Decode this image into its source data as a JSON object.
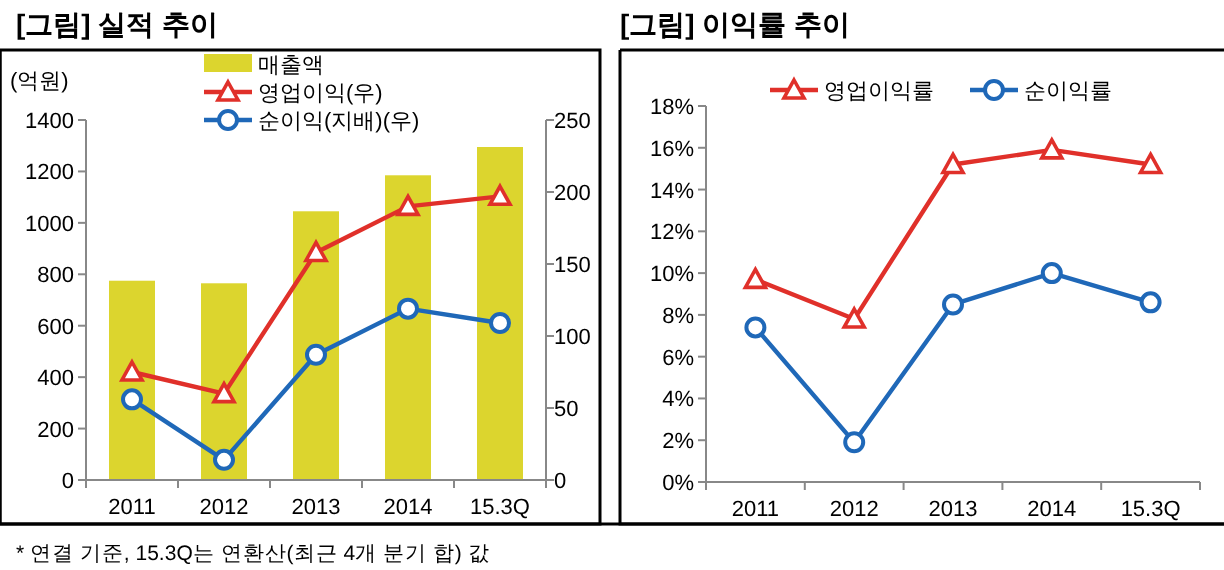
{
  "chart_data": [
    {
      "type": "bar",
      "title": "[그림] 실적 추이",
      "ylabel": "(억원)",
      "categories": [
        "2011",
        "2012",
        "2013",
        "2014",
        "15.3Q"
      ],
      "series": [
        {
          "name": "매출액",
          "color": "#dcd52e",
          "values": [
            775,
            765,
            1045,
            1185,
            1295
          ]
        },
        {
          "name": "영업이익(우)",
          "type": "line",
          "axis": "y2",
          "marker": "triangle",
          "color": "#e0302a",
          "values": [
            75,
            60,
            158,
            190,
            197
          ]
        },
        {
          "name": "순이익(지배)(우)",
          "type": "line",
          "axis": "y2",
          "marker": "circle",
          "color": "#1f68b8",
          "values": [
            56,
            14,
            87,
            119,
            109
          ]
        }
      ],
      "ylim": [
        0,
        1400
      ],
      "yticks": [
        0,
        200,
        400,
        600,
        800,
        1000,
        1200,
        1400
      ],
      "y2lim": [
        0,
        250
      ],
      "y2ticks": [
        0,
        50,
        100,
        150,
        200,
        250
      ],
      "legend": "top",
      "grid": false,
      "annotations": [
        "* 연결 기준, 15.3Q는 연환산(최근 4개 분기 합) 값"
      ]
    },
    {
      "type": "line",
      "title": "[그림] 이익률 추이",
      "categories": [
        "2011",
        "2012",
        "2013",
        "2014",
        "15.3Q"
      ],
      "series": [
        {
          "name": "영업이익률",
          "marker": "triangle",
          "color": "#e0302a",
          "values": [
            9.7,
            7.8,
            15.2,
            15.9,
            15.2
          ]
        },
        {
          "name": "순이익률",
          "marker": "circle",
          "color": "#1f68b8",
          "values": [
            7.4,
            1.9,
            8.5,
            10.0,
            8.6
          ]
        }
      ],
      "ylim": [
        0,
        18
      ],
      "yticks": [
        {
          "value": 0,
          "label": "0%"
        },
        {
          "value": 2,
          "label": "2%"
        },
        {
          "value": 4,
          "label": "4%"
        },
        {
          "value": 6,
          "label": "6%"
        },
        {
          "value": 8,
          "label": "8%"
        },
        {
          "value": 10,
          "label": "10%"
        },
        {
          "value": 12,
          "label": "12%"
        },
        {
          "value": 14,
          "label": "14%"
        },
        {
          "value": 16,
          "label": "16%"
        },
        {
          "value": 18,
          "label": "18%"
        }
      ],
      "legend": "top",
      "grid": false
    }
  ]
}
